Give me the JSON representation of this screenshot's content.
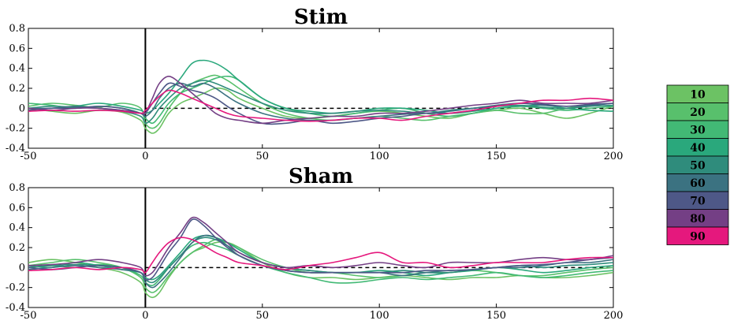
{
  "chart_data": [
    {
      "type": "line",
      "title": "Stim",
      "xlabel": "",
      "ylabel": "",
      "xlim": [
        -50,
        200
      ],
      "ylim": [
        -0.4,
        0.8
      ],
      "xticks": [
        "-50",
        "0",
        "50",
        "100",
        "150",
        "200"
      ],
      "yticks": [
        "0.8",
        "0.6",
        "0.4",
        "0.2",
        "0",
        "-0.2",
        "-0.4"
      ],
      "grid": false,
      "reference_lines": {
        "vertical_x": 0,
        "horizontal_dashed_y": 0
      },
      "x": [
        -50,
        -40,
        -30,
        -20,
        -10,
        -2,
        0,
        3,
        6,
        10,
        15,
        20,
        25,
        30,
        35,
        40,
        50,
        60,
        70,
        80,
        90,
        100,
        110,
        120,
        130,
        140,
        150,
        160,
        170,
        180,
        190,
        200
      ],
      "series": [
        {
          "name": "10",
          "values": [
            0.0,
            -0.03,
            -0.05,
            -0.02,
            -0.04,
            -0.12,
            -0.2,
            -0.25,
            -0.2,
            -0.05,
            0.05,
            0.1,
            0.15,
            0.2,
            0.18,
            0.1,
            0.0,
            -0.08,
            -0.1,
            -0.08,
            -0.05,
            -0.03,
            -0.05,
            -0.08,
            -0.1,
            -0.05,
            -0.02,
            0.0,
            -0.05,
            -0.1,
            -0.05,
            0.02
          ]
        },
        {
          "name": "20",
          "values": [
            0.02,
            0.05,
            0.03,
            0.01,
            0.05,
            0.0,
            -0.15,
            -0.2,
            -0.15,
            0.0,
            0.15,
            0.25,
            0.3,
            0.33,
            0.28,
            0.2,
            0.05,
            -0.05,
            -0.1,
            -0.12,
            -0.1,
            -0.08,
            -0.1,
            -0.12,
            -0.08,
            -0.05,
            -0.02,
            -0.05,
            -0.05,
            0.0,
            0.03,
            0.05
          ]
        },
        {
          "name": "30",
          "values": [
            0.05,
            0.03,
            0.0,
            0.02,
            0.0,
            -0.05,
            -0.1,
            -0.15,
            -0.08,
            0.05,
            0.15,
            0.2,
            0.25,
            0.3,
            0.32,
            0.28,
            0.1,
            0.0,
            -0.05,
            -0.08,
            -0.05,
            -0.02,
            0.0,
            -0.05,
            -0.08,
            -0.05,
            0.0,
            0.02,
            0.0,
            -0.02,
            0.0,
            0.02
          ]
        },
        {
          "name": "40",
          "values": [
            -0.02,
            0.0,
            0.02,
            0.05,
            0.02,
            -0.02,
            -0.05,
            -0.02,
            0.05,
            0.15,
            0.3,
            0.45,
            0.48,
            0.45,
            0.38,
            0.28,
            0.1,
            0.0,
            -0.03,
            -0.05,
            -0.03,
            0.0,
            0.0,
            -0.02,
            -0.05,
            -0.03,
            0.0,
            0.02,
            0.03,
            0.0,
            -0.02,
            -0.03
          ]
        },
        {
          "name": "50",
          "values": [
            0.0,
            0.02,
            0.01,
            0.0,
            -0.03,
            -0.08,
            -0.15,
            -0.1,
            0.0,
            0.1,
            0.2,
            0.25,
            0.28,
            0.25,
            0.2,
            0.15,
            0.05,
            -0.02,
            -0.05,
            -0.05,
            -0.03,
            -0.02,
            -0.03,
            -0.05,
            -0.02,
            0.0,
            0.02,
            0.03,
            0.01,
            0.0,
            0.02,
            0.03
          ]
        },
        {
          "name": "60",
          "values": [
            0.0,
            0.0,
            0.02,
            0.0,
            -0.02,
            -0.05,
            -0.08,
            -0.02,
            0.1,
            0.2,
            0.25,
            0.22,
            0.25,
            0.2,
            0.12,
            0.05,
            -0.05,
            -0.1,
            -0.12,
            -0.12,
            -0.1,
            -0.08,
            -0.06,
            -0.05,
            -0.03,
            0.0,
            0.03,
            0.05,
            0.03,
            0.02,
            0.03,
            0.05
          ]
        },
        {
          "name": "70",
          "values": [
            -0.02,
            0.0,
            0.0,
            0.02,
            0.0,
            -0.05,
            -0.05,
            0.05,
            0.15,
            0.25,
            0.22,
            0.18,
            0.15,
            0.1,
            0.02,
            -0.05,
            -0.15,
            -0.15,
            -0.12,
            -0.15,
            -0.13,
            -0.1,
            -0.08,
            -0.05,
            -0.05,
            -0.02,
            0.02,
            0.05,
            0.04,
            0.02,
            0.04,
            0.05
          ]
        },
        {
          "name": "80",
          "values": [
            0.0,
            -0.02,
            0.0,
            0.0,
            -0.02,
            -0.05,
            -0.05,
            0.1,
            0.25,
            0.32,
            0.25,
            0.15,
            0.05,
            -0.05,
            -0.1,
            -0.12,
            -0.15,
            -0.12,
            -0.1,
            -0.08,
            -0.08,
            -0.05,
            -0.05,
            -0.03,
            0.0,
            0.03,
            0.05,
            0.08,
            0.05,
            0.05,
            0.05,
            0.08
          ]
        },
        {
          "name": "90",
          "values": [
            -0.03,
            -0.02,
            -0.03,
            -0.02,
            -0.03,
            -0.05,
            -0.02,
            0.05,
            0.12,
            0.18,
            0.15,
            0.1,
            0.05,
            0.0,
            -0.05,
            -0.08,
            -0.1,
            -0.12,
            -0.13,
            -0.12,
            -0.1,
            -0.1,
            -0.12,
            -0.08,
            -0.05,
            -0.02,
            0.02,
            0.05,
            0.08,
            0.08,
            0.1,
            0.08
          ]
        }
      ]
    },
    {
      "type": "line",
      "title": "Sham",
      "xlabel": "",
      "ylabel": "",
      "xlim": [
        -50,
        200
      ],
      "ylim": [
        -0.4,
        0.8
      ],
      "xticks": [
        "-50",
        "0",
        "50",
        "100",
        "150",
        "200"
      ],
      "yticks": [
        "0.8",
        "0.6",
        "0.4",
        "0.2",
        "0",
        "-0.2",
        "-0.4"
      ],
      "grid": false,
      "reference_lines": {
        "vertical_x": 0,
        "horizontal_dashed_y": 0
      },
      "x": [
        -50,
        -40,
        -30,
        -20,
        -10,
        -2,
        0,
        3,
        6,
        10,
        15,
        20,
        25,
        30,
        35,
        40,
        50,
        60,
        70,
        80,
        90,
        100,
        110,
        120,
        130,
        140,
        150,
        160,
        170,
        180,
        190,
        200
      ],
      "series": [
        {
          "name": "10",
          "values": [
            0.05,
            0.08,
            0.05,
            0.0,
            -0.05,
            -0.15,
            -0.25,
            -0.3,
            -0.25,
            -0.1,
            0.05,
            0.15,
            0.2,
            0.25,
            0.25,
            0.2,
            0.05,
            -0.05,
            -0.1,
            -0.1,
            -0.12,
            -0.1,
            -0.08,
            -0.1,
            -0.12,
            -0.1,
            -0.1,
            -0.08,
            -0.1,
            -0.1,
            -0.08,
            -0.05
          ]
        },
        {
          "name": "20",
          "values": [
            0.02,
            0.05,
            0.08,
            0.05,
            0.0,
            -0.1,
            -0.2,
            -0.25,
            -0.2,
            -0.08,
            0.05,
            0.15,
            0.22,
            0.28,
            0.25,
            0.2,
            0.08,
            0.0,
            -0.05,
            -0.05,
            -0.08,
            -0.1,
            -0.08,
            -0.05,
            -0.05,
            -0.03,
            -0.05,
            -0.08,
            -0.08,
            -0.05,
            -0.02,
            0.0
          ]
        },
        {
          "name": "30",
          "values": [
            0.0,
            0.02,
            0.0,
            0.03,
            0.0,
            -0.08,
            -0.15,
            -0.18,
            -0.12,
            0.0,
            0.12,
            0.22,
            0.25,
            0.22,
            0.18,
            0.12,
            0.02,
            -0.05,
            -0.1,
            -0.15,
            -0.15,
            -0.12,
            -0.1,
            -0.12,
            -0.1,
            -0.08,
            -0.05,
            -0.08,
            -0.1,
            -0.08,
            -0.05,
            -0.03
          ]
        },
        {
          "name": "40",
          "values": [
            0.02,
            0.0,
            0.05,
            0.02,
            -0.02,
            -0.05,
            -0.1,
            -0.12,
            -0.08,
            0.02,
            0.15,
            0.28,
            0.32,
            0.3,
            0.25,
            0.18,
            0.05,
            0.0,
            -0.03,
            -0.05,
            -0.05,
            -0.03,
            -0.05,
            -0.08,
            -0.05,
            -0.03,
            0.0,
            -0.02,
            -0.05,
            -0.03,
            0.0,
            0.02
          ]
        },
        {
          "name": "50",
          "values": [
            0.0,
            0.02,
            0.03,
            0.02,
            0.0,
            -0.05,
            -0.12,
            -0.15,
            -0.1,
            0.0,
            0.12,
            0.25,
            0.3,
            0.28,
            0.22,
            0.15,
            0.05,
            0.0,
            -0.03,
            -0.05,
            -0.05,
            -0.05,
            -0.03,
            -0.05,
            -0.05,
            -0.02,
            0.0,
            0.02,
            0.0,
            0.02,
            0.03,
            0.05
          ]
        },
        {
          "name": "60",
          "values": [
            -0.02,
            0.0,
            0.02,
            0.0,
            -0.02,
            -0.05,
            -0.15,
            -0.2,
            -0.15,
            -0.05,
            0.1,
            0.25,
            0.32,
            0.3,
            0.22,
            0.12,
            0.02,
            -0.03,
            -0.05,
            -0.05,
            -0.05,
            -0.05,
            -0.08,
            -0.05,
            -0.03,
            -0.02,
            0.0,
            0.0,
            0.02,
            0.05,
            0.05,
            0.08
          ]
        },
        {
          "name": "70",
          "values": [
            0.0,
            -0.02,
            0.0,
            0.02,
            0.0,
            -0.05,
            -0.12,
            -0.1,
            0.0,
            0.15,
            0.3,
            0.48,
            0.42,
            0.3,
            0.2,
            0.12,
            0.02,
            -0.03,
            -0.05,
            -0.05,
            -0.05,
            -0.05,
            -0.05,
            -0.03,
            -0.03,
            -0.02,
            0.0,
            0.02,
            0.03,
            0.05,
            0.08,
            0.1
          ]
        },
        {
          "name": "80",
          "values": [
            0.02,
            0.03,
            0.05,
            0.08,
            0.05,
            0.0,
            -0.08,
            -0.05,
            0.05,
            0.2,
            0.35,
            0.5,
            0.45,
            0.35,
            0.25,
            0.15,
            0.05,
            0.0,
            0.02,
            0.0,
            0.02,
            0.05,
            0.02,
            0.0,
            0.05,
            0.05,
            0.05,
            0.08,
            0.1,
            0.08,
            0.08,
            0.12
          ]
        },
        {
          "name": "90",
          "values": [
            -0.03,
            -0.02,
            0.0,
            -0.02,
            0.0,
            -0.02,
            -0.05,
            0.05,
            0.15,
            0.25,
            0.3,
            0.28,
            0.22,
            0.15,
            0.1,
            0.05,
            0.02,
            -0.02,
            0.02,
            0.05,
            0.1,
            0.15,
            0.05,
            0.05,
            0.0,
            0.02,
            0.05,
            0.05,
            0.05,
            0.08,
            0.1,
            0.1
          ]
        }
      ]
    }
  ],
  "legend": {
    "entries": [
      "10",
      "20",
      "30",
      "40",
      "50",
      "60",
      "70",
      "80",
      "90"
    ],
    "colors": [
      "#6cc264",
      "#58c06c",
      "#42b975",
      "#2aa87c",
      "#2f8c7c",
      "#3b7281",
      "#4e5887",
      "#743f85",
      "#e5187d"
    ]
  },
  "colors": {
    "axis": "#000000",
    "background": "#ffffff"
  }
}
